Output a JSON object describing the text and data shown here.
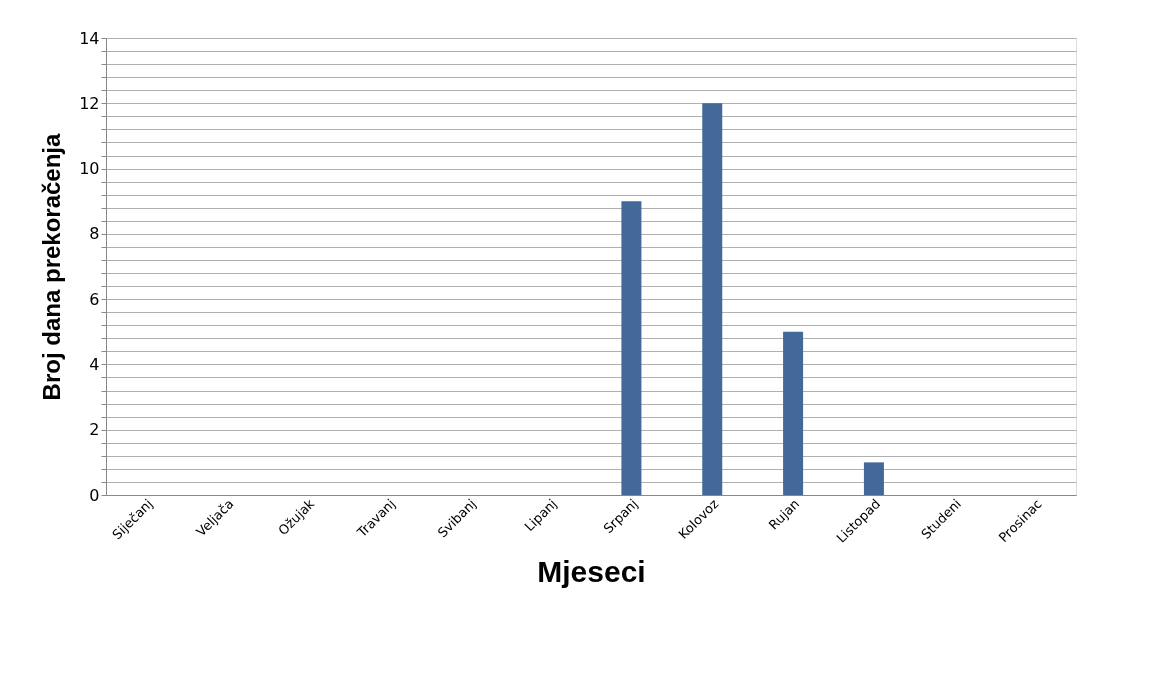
{
  "chart_data": {
    "type": "bar",
    "xlabel": "Mjeseci",
    "ylabel": "Broj dana prekoračenja",
    "categories": [
      "Siječanj",
      "Veljača",
      "Ožujak",
      "Travanj",
      "Svibanj",
      "Lipanj",
      "Srpanj",
      "Kolovoz",
      "Rujan",
      "Listopad",
      "Studeni",
      "Prosinac"
    ],
    "values": [
      0,
      0,
      0,
      0,
      0,
      0,
      9,
      12,
      5,
      1,
      0,
      0
    ],
    "color": "#43699b",
    "ylim": [
      0,
      14
    ],
    "yticks": [
      0,
      {
        "value": 0.4,
        "label": null
      },
      {
        "value": 0.8,
        "label": null
      },
      {
        "value": 1.2,
        "label": null
      },
      {
        "value": 1.6,
        "label": null
      },
      2,
      {
        "value": 2.4,
        "label": null
      },
      {
        "value": 2.8,
        "label": null
      },
      {
        "value": 3.2,
        "label": null
      },
      {
        "value": 3.6,
        "label": null
      },
      4,
      {
        "value": 4.4,
        "label": null
      },
      {
        "value": 4.8,
        "label": null
      },
      {
        "value": 5.2,
        "label": null
      },
      {
        "value": 5.6,
        "label": null
      },
      6,
      {
        "value": 6.4,
        "label": null
      },
      {
        "value": 6.8,
        "label": null
      },
      {
        "value": 7.2,
        "label": null
      },
      {
        "value": 7.6,
        "label": null
      },
      8,
      {
        "value": 8.4,
        "label": null
      },
      {
        "value": 8.8,
        "label": null
      },
      {
        "value": 9.2,
        "label": null
      },
      {
        "value": 9.6,
        "label": null
      },
      10,
      {
        "value": 10.4,
        "label": null
      },
      {
        "value": 10.8,
        "label": null
      },
      {
        "value": 11.2,
        "label": null
      },
      {
        "value": 11.6,
        "label": null
      },
      12,
      {
        "value": 12.4,
        "label": null
      },
      {
        "value": 12.8,
        "label": null
      },
      {
        "value": 13.2,
        "label": null
      },
      {
        "value": 13.6,
        "label": null
      },
      14
    ],
    "grid": "y"
  }
}
